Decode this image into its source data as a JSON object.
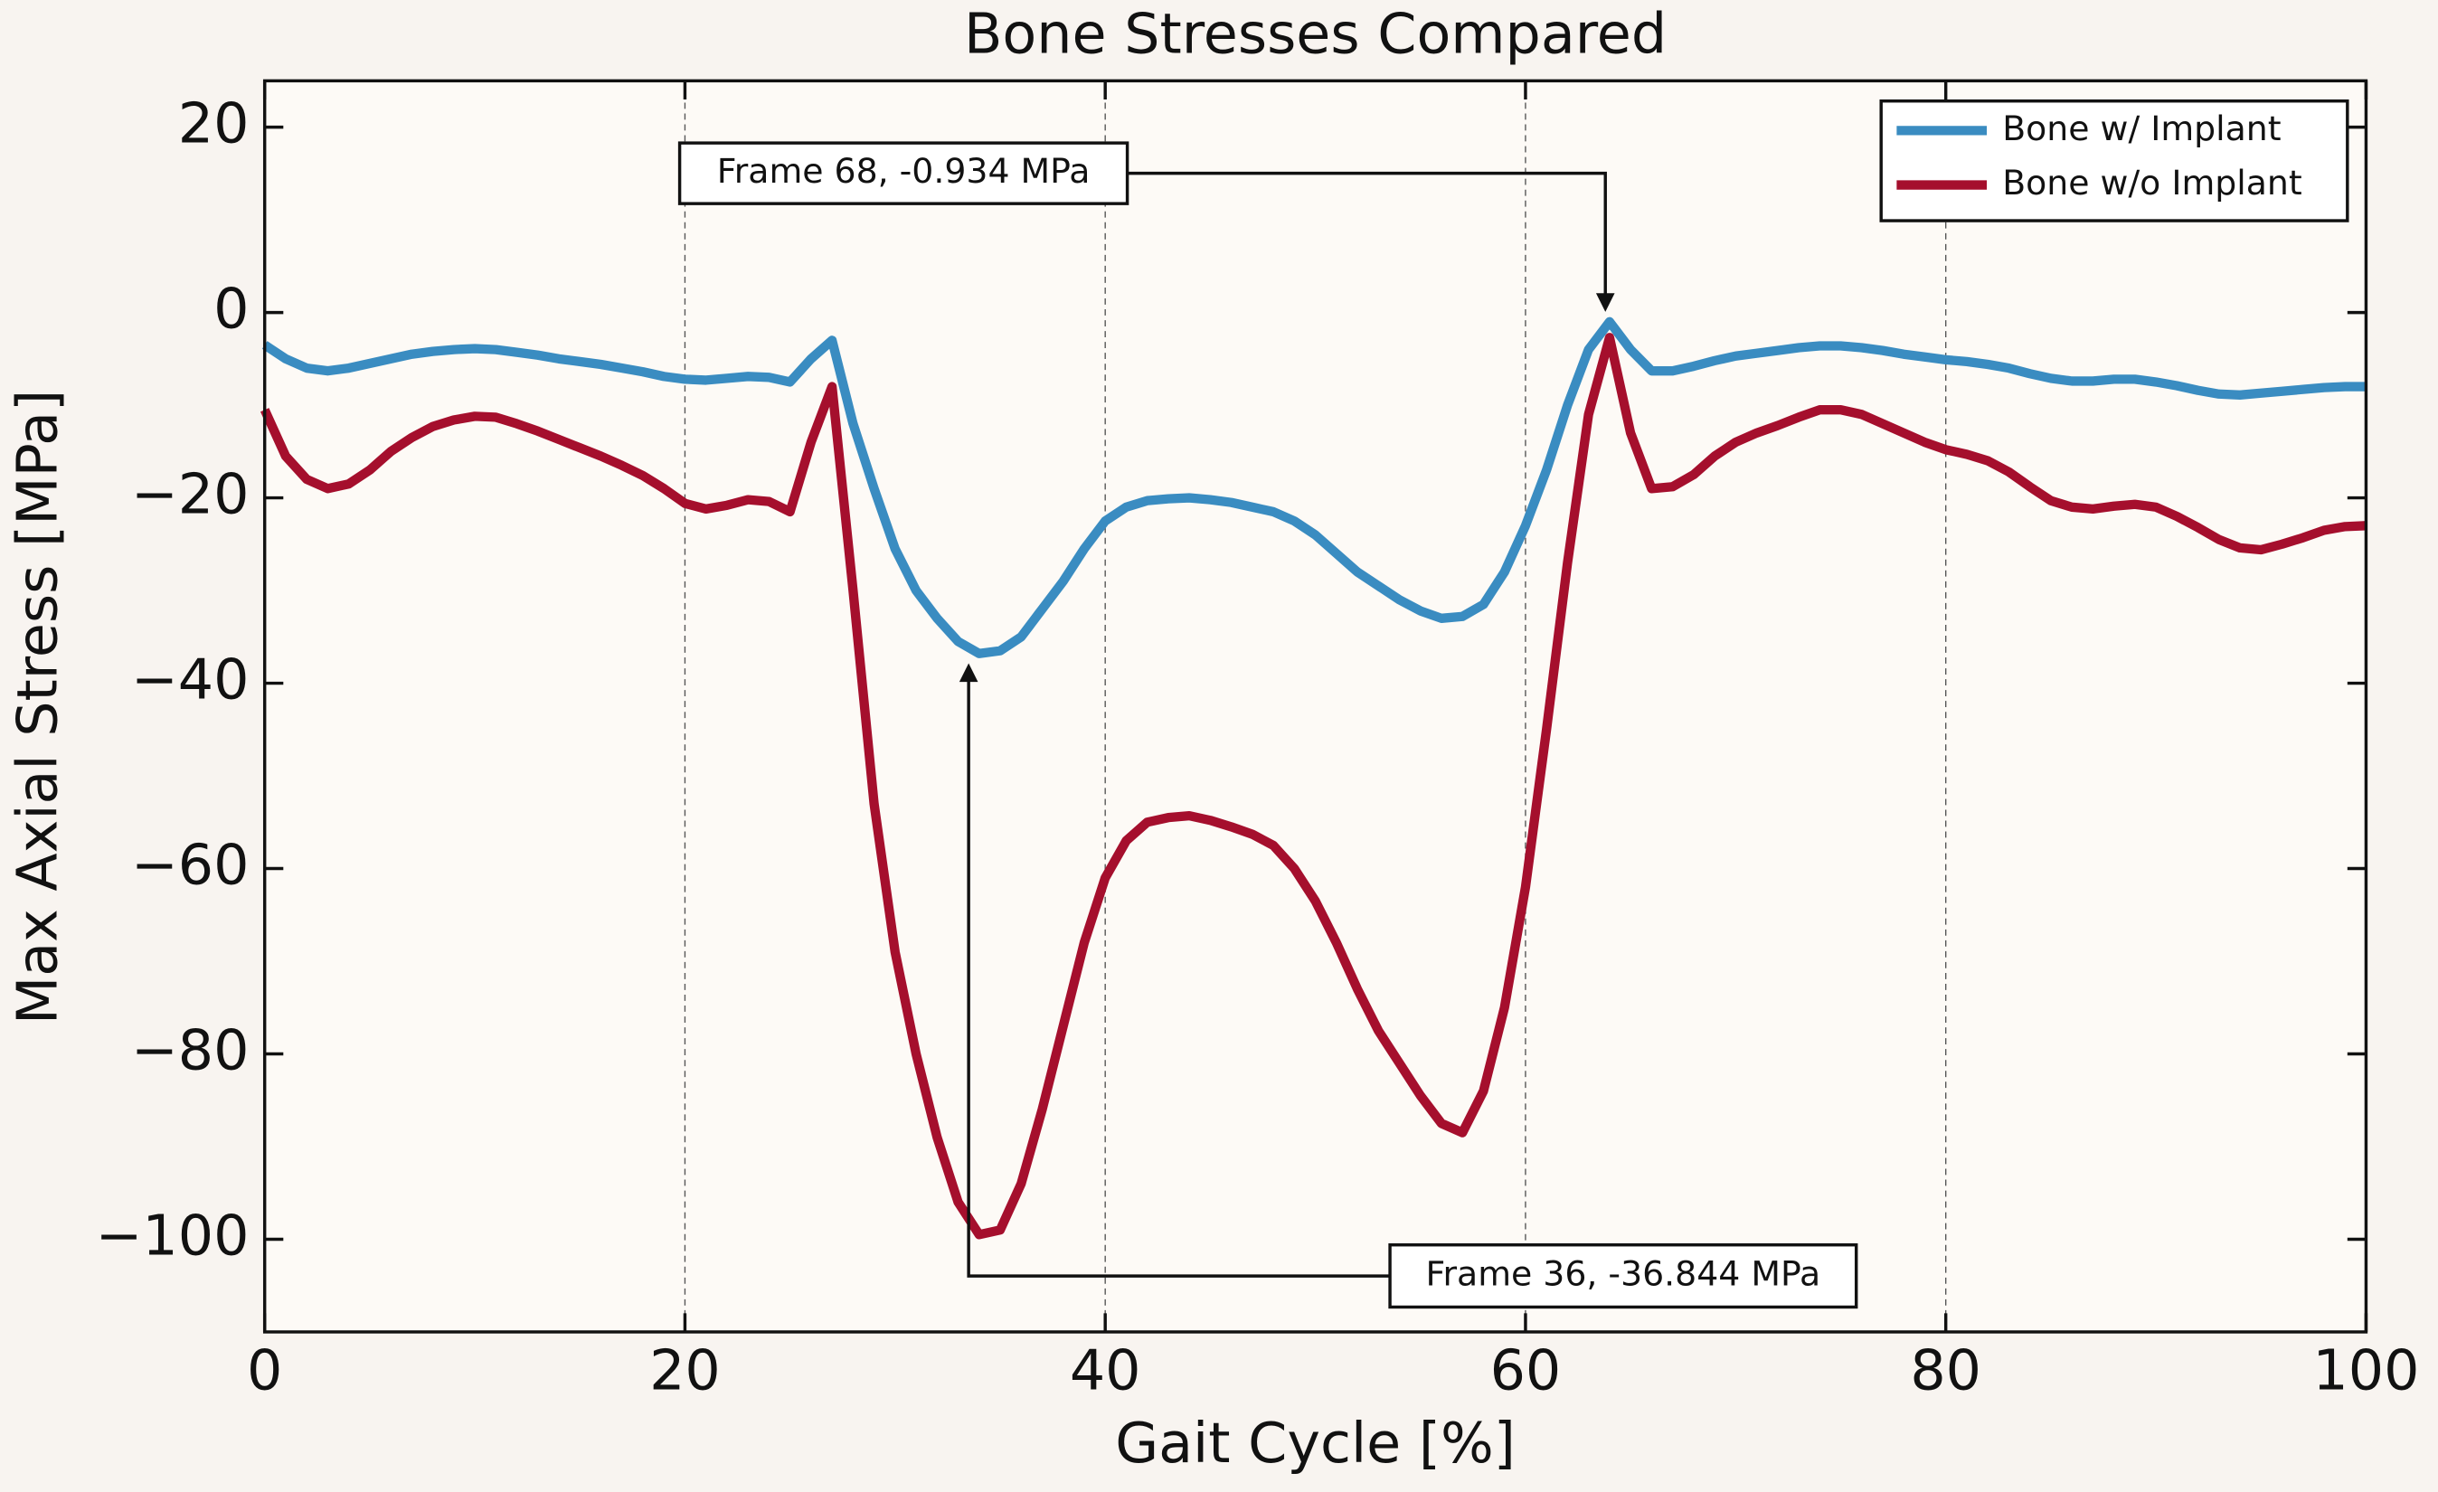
{
  "chart_data": {
    "type": "line",
    "title": "Bone Stresses Compared",
    "x_label": "Gait Cycle [%]",
    "y_label": "Max Axial Stress [MPa]",
    "x": [
      0,
      1,
      2,
      3,
      4,
      5,
      6,
      7,
      8,
      9,
      10,
      11,
      12,
      13,
      14,
      15,
      16,
      17,
      18,
      19,
      20,
      21,
      22,
      23,
      24,
      25,
      26,
      27,
      28,
      29,
      30,
      31,
      32,
      33,
      34,
      35,
      36,
      37,
      38,
      39,
      40,
      41,
      42,
      43,
      44,
      45,
      46,
      47,
      48,
      49,
      50,
      51,
      52,
      53,
      54,
      55,
      56,
      57,
      58,
      59,
      60,
      61,
      62,
      63,
      64,
      65,
      66,
      67,
      68,
      69,
      70,
      71,
      72,
      73,
      74,
      75,
      76,
      77,
      78,
      79,
      80,
      81,
      82,
      83,
      84,
      85,
      86,
      87,
      88,
      89,
      90,
      91,
      92,
      93,
      94,
      95,
      96,
      97,
      98,
      99,
      100
    ],
    "series": [
      {
        "name": "Bone w/ Implant",
        "color": "#3a8cc1",
        "values": [
          -3.5,
          -5,
          -6,
          -6.3,
          -6,
          -5.5,
          -5,
          -4.5,
          -4.2,
          -4,
          -3.9,
          -4,
          -4.3,
          -4.6,
          -5,
          -5.3,
          -5.6,
          -6,
          -6.4,
          -6.9,
          -7.2,
          -7.3,
          -7.1,
          -6.9,
          -7,
          -7.5,
          -5,
          -3,
          -12,
          -19,
          -25.5,
          -30,
          -33,
          -35.5,
          -36.8,
          -36.5,
          -35,
          -32,
          -29,
          -25.5,
          -22.5,
          -21,
          -20.3,
          -20.1,
          -20,
          -20.2,
          -20.5,
          -21,
          -21.5,
          -22.5,
          -24,
          -26,
          -28,
          -29.5,
          -31,
          -32.2,
          -33,
          -32.8,
          -31.5,
          -28,
          -23,
          -17,
          -10,
          -4,
          -1,
          -4,
          -6.3,
          -6.3,
          -5.8,
          -5.2,
          -4.7,
          -4.4,
          -4.1,
          -3.8,
          -3.6,
          -3.6,
          -3.8,
          -4.1,
          -4.5,
          -4.8,
          -5.1,
          -5.3,
          -5.6,
          -6,
          -6.6,
          -7.1,
          -7.4,
          -7.4,
          -7.2,
          -7.2,
          -7.5,
          -7.9,
          -8.4,
          -8.8,
          -8.9,
          -8.7,
          -8.5,
          -8.3,
          -8.1,
          -8,
          -8
        ]
      },
      {
        "name": "Bone w/o Implant",
        "color": "#a50f2d",
        "values": [
          -10.5,
          -15.5,
          -18,
          -19,
          -18.5,
          -17,
          -15,
          -13.5,
          -12.3,
          -11.6,
          -11.2,
          -11.3,
          -12,
          -12.8,
          -13.7,
          -14.6,
          -15.5,
          -16.5,
          -17.6,
          -19,
          -20.6,
          -21.2,
          -20.8,
          -20.2,
          -20.4,
          -21.5,
          -14,
          -8,
          -30,
          -53,
          -69,
          -80,
          -89,
          -96,
          -99.5,
          -99,
          -94,
          -86,
          -77,
          -68,
          -61,
          -57,
          -55,
          -54.5,
          -54.3,
          -54.8,
          -55.5,
          -56.3,
          -57.5,
          -60,
          -63.5,
          -68,
          -73,
          -77.5,
          -81,
          -84.5,
          -87.5,
          -88.5,
          -84,
          -75,
          -62,
          -45,
          -27,
          -11,
          -2.7,
          -13,
          -19,
          -18.8,
          -17.5,
          -15.5,
          -14,
          -13,
          -12.2,
          -11.3,
          -10.5,
          -10.5,
          -11,
          -12,
          -13,
          -14,
          -14.8,
          -15.3,
          -16,
          -17.2,
          -18.8,
          -20.3,
          -21,
          -21.2,
          -20.9,
          -20.7,
          -21,
          -22,
          -23.2,
          -24.5,
          -25.4,
          -25.6,
          -25,
          -24.3,
          -23.5,
          -23.1,
          -23
        ]
      }
    ],
    "xlim": [
      0,
      100
    ],
    "ylim": [
      -110,
      25
    ],
    "xticks": [
      0,
      20,
      40,
      60,
      80,
      100
    ],
    "yticks": [
      20,
      0,
      {
        "value": -20,
        "label": "−20"
      },
      {
        "value": -40,
        "label": "−40"
      },
      {
        "value": -60,
        "label": "−60"
      },
      {
        "value": -80,
        "label": "−80"
      },
      {
        "value": -100,
        "label": "−100"
      }
    ],
    "grid": "x",
    "legend": "upper right",
    "annotations": [
      {
        "text": "Frame 68, -0.934 MPa",
        "x": 63.8,
        "y": -0.934
      },
      {
        "text": "Frame 36, -36.844 MPa",
        "x": 33.5,
        "y": -36.844
      }
    ]
  }
}
